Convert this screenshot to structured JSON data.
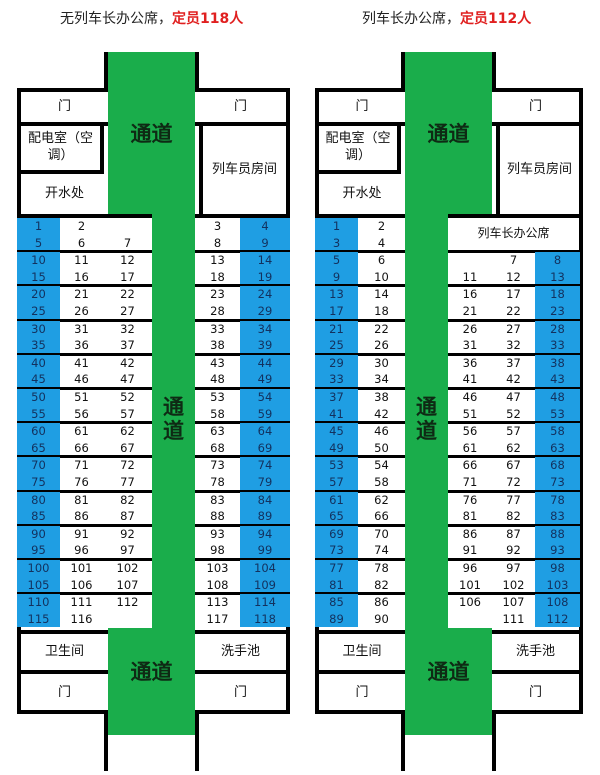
{
  "colors": {
    "aisle": "#1aad4b",
    "window_seat": "#1f9ee3",
    "capacity": "#e02020"
  },
  "cars": [
    {
      "title": "无列车长办公席，",
      "capacity": "定员118人",
      "door": "门",
      "power_room": "配电室（空调）",
      "water": "开水处",
      "crew_room": "列车员房间",
      "aisle": "通道",
      "aisle_vertical": "通\n道",
      "toilet": "卫生间",
      "sink": "洗手池",
      "head_office": "",
      "left_groups": [
        [
          [
            "1",
            "2",
            ""
          ],
          [
            "5",
            "6",
            "7"
          ]
        ],
        [
          [
            "10",
            "11",
            "12"
          ],
          [
            "15",
            "16",
            "17"
          ]
        ],
        [
          [
            "20",
            "21",
            "22"
          ],
          [
            "25",
            "26",
            "27"
          ]
        ],
        [
          [
            "30",
            "31",
            "32"
          ],
          [
            "35",
            "36",
            "37"
          ]
        ],
        [
          [
            "40",
            "41",
            "42"
          ],
          [
            "45",
            "46",
            "47"
          ]
        ],
        [
          [
            "50",
            "51",
            "52"
          ],
          [
            "55",
            "56",
            "57"
          ]
        ],
        [
          [
            "60",
            "61",
            "62"
          ],
          [
            "65",
            "66",
            "67"
          ]
        ],
        [
          [
            "70",
            "71",
            "72"
          ],
          [
            "75",
            "76",
            "77"
          ]
        ],
        [
          [
            "80",
            "81",
            "82"
          ],
          [
            "85",
            "86",
            "87"
          ]
        ],
        [
          [
            "90",
            "91",
            "92"
          ],
          [
            "95",
            "96",
            "97"
          ]
        ],
        [
          [
            "100",
            "101",
            "102"
          ],
          [
            "105",
            "106",
            "107"
          ]
        ],
        [
          [
            "110",
            "111",
            "112"
          ],
          [
            "115",
            "116",
            ""
          ]
        ]
      ],
      "right_groups": [
        [
          [
            "3",
            "4"
          ],
          [
            "8",
            "9"
          ]
        ],
        [
          [
            "13",
            "14"
          ],
          [
            "18",
            "19"
          ]
        ],
        [
          [
            "23",
            "24"
          ],
          [
            "28",
            "29"
          ]
        ],
        [
          [
            "33",
            "34"
          ],
          [
            "38",
            "39"
          ]
        ],
        [
          [
            "43",
            "44"
          ],
          [
            "48",
            "49"
          ]
        ],
        [
          [
            "53",
            "54"
          ],
          [
            "58",
            "59"
          ]
        ],
        [
          [
            "63",
            "64"
          ],
          [
            "68",
            "69"
          ]
        ],
        [
          [
            "73",
            "74"
          ],
          [
            "78",
            "79"
          ]
        ],
        [
          [
            "83",
            "84"
          ],
          [
            "88",
            "89"
          ]
        ],
        [
          [
            "93",
            "94"
          ],
          [
            "98",
            "99"
          ]
        ],
        [
          [
            "103",
            "104"
          ],
          [
            "108",
            "109"
          ]
        ],
        [
          [
            "113",
            "114"
          ],
          [
            "117",
            "118"
          ]
        ]
      ]
    },
    {
      "title": "列车长办公席，",
      "capacity": "定员112人",
      "door": "门",
      "power_room": "配电室（空调）",
      "water": "开水处",
      "crew_room": "列车员房间",
      "aisle": "通道",
      "aisle_vertical": "通\n道",
      "toilet": "卫生间",
      "sink": "洗手池",
      "head_office": "列车长办公席",
      "left_groups": [
        [
          [
            "1",
            "2"
          ],
          [
            "3",
            "4"
          ]
        ],
        [
          [
            "5",
            "6"
          ],
          [
            "9",
            "10"
          ]
        ],
        [
          [
            "13",
            "14"
          ],
          [
            "17",
            "18"
          ]
        ],
        [
          [
            "21",
            "22"
          ],
          [
            "25",
            "26"
          ]
        ],
        [
          [
            "29",
            "30"
          ],
          [
            "33",
            "34"
          ]
        ],
        [
          [
            "37",
            "38"
          ],
          [
            "41",
            "42"
          ]
        ],
        [
          [
            "45",
            "46"
          ],
          [
            "49",
            "50"
          ]
        ],
        [
          [
            "53",
            "54"
          ],
          [
            "57",
            "58"
          ]
        ],
        [
          [
            "61",
            "62"
          ],
          [
            "65",
            "66"
          ]
        ],
        [
          [
            "69",
            "70"
          ],
          [
            "73",
            "74"
          ]
        ],
        [
          [
            "77",
            "78"
          ],
          [
            "81",
            "82"
          ]
        ],
        [
          [
            "85",
            "86"
          ],
          [
            "89",
            "90"
          ]
        ]
      ],
      "right_groups": [
        null,
        [
          [
            "",
            "7",
            "8"
          ],
          [
            "11",
            "12",
            "13"
          ]
        ],
        [
          [
            "16",
            "17",
            "18"
          ],
          [
            "21",
            "22",
            "23"
          ]
        ],
        [
          [
            "26",
            "27",
            "28"
          ],
          [
            "31",
            "32",
            "33"
          ]
        ],
        [
          [
            "36",
            "37",
            "38"
          ],
          [
            "41",
            "42",
            "43"
          ]
        ],
        [
          [
            "46",
            "47",
            "48"
          ],
          [
            "51",
            "52",
            "53"
          ]
        ],
        [
          [
            "56",
            "57",
            "58"
          ],
          [
            "61",
            "62",
            "63"
          ]
        ],
        [
          [
            "66",
            "67",
            "68"
          ],
          [
            "71",
            "72",
            "73"
          ]
        ],
        [
          [
            "76",
            "77",
            "78"
          ],
          [
            "81",
            "82",
            "83"
          ]
        ],
        [
          [
            "86",
            "87",
            "88"
          ],
          [
            "91",
            "92",
            "93"
          ]
        ],
        [
          [
            "96",
            "97",
            "98"
          ],
          [
            "101",
            "102",
            "103"
          ]
        ],
        [
          [
            "106",
            "107",
            "108"
          ],
          [
            "",
            "111",
            "112"
          ]
        ]
      ]
    }
  ]
}
